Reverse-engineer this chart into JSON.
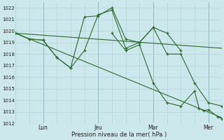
{
  "xlabel": "Pression niveau de la mer( hPa )",
  "background_color": "#cce8ec",
  "grid_color": "#aacdd4",
  "line_color": "#2d6a2d",
  "ylim": [
    1012,
    1022.5
  ],
  "xlim": [
    0,
    180
  ],
  "yticks": [
    1012,
    1013,
    1014,
    1015,
    1016,
    1017,
    1018,
    1019,
    1020,
    1021,
    1022
  ],
  "day_positions": [
    24,
    72,
    120,
    168
  ],
  "day_labels": [
    "Lun",
    "Jeu",
    "Mar",
    "Mer"
  ],
  "series1_x": [
    0,
    12,
    24,
    36,
    48,
    60,
    72,
    84,
    96,
    108,
    120,
    132,
    144
  ],
  "series1_y": [
    1019.8,
    1019.3,
    1019.2,
    1017.7,
    1016.8,
    1021.2,
    1021.3,
    1022.0,
    1019.3,
    1019.0,
    1020.3,
    1019.8,
    1018.3
  ],
  "series2_x": [
    0,
    12,
    24,
    36,
    48,
    60,
    72,
    84,
    96,
    108,
    120,
    132,
    144,
    156,
    168,
    180
  ],
  "series2_y": [
    1019.8,
    1019.3,
    1019.2,
    1017.7,
    1016.8,
    1018.3,
    1021.4,
    1021.8,
    1018.5,
    1019.0,
    1020.3,
    1018.0,
    1018.0,
    1015.5,
    1013.8,
    1013.5
  ],
  "trend1_x": [
    0,
    180
  ],
  "trend1_y": [
    1019.8,
    1012.5
  ],
  "trend2_x": [
    0,
    180
  ],
  "trend2_y": [
    1019.8,
    1018.5
  ],
  "series3_x": [
    84,
    96,
    108,
    120,
    132,
    144,
    156,
    160,
    164,
    168,
    176,
    180
  ],
  "series3_y": [
    1019.8,
    1018.3,
    1018.8,
    1015.5,
    1013.8,
    1013.5,
    1014.8,
    1013.3,
    1013.1,
    1013.2,
    1012.6,
    1012.4
  ]
}
